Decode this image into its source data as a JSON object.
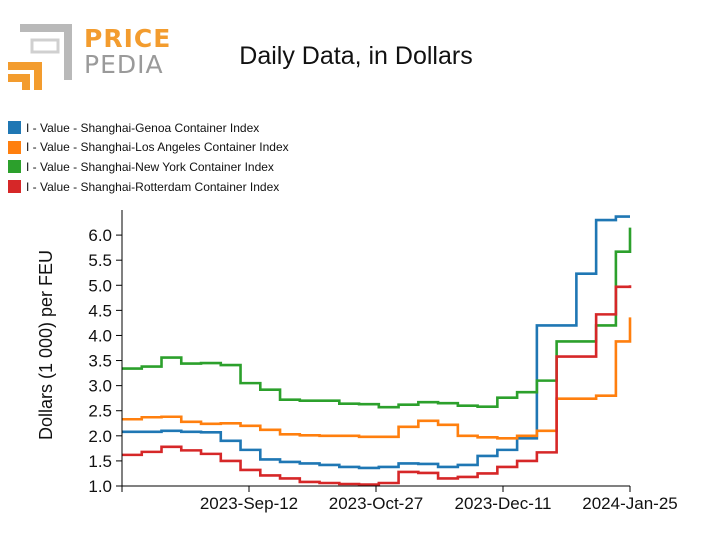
{
  "logo": {
    "line1": "PRICE",
    "line2": "PEDIA",
    "colors": {
      "orange": "#f39c2e",
      "gray": "#9a9a9a"
    }
  },
  "header": {
    "title": "Daily Data, in Dollars"
  },
  "chart_data": {
    "type": "line",
    "title": "Daily Data, in Dollars",
    "xlabel": "",
    "ylabel": "Dollars (1 000) per FEU",
    "ylim": [
      1.0,
      6.5
    ],
    "yticks": [
      1.0,
      1.5,
      2.0,
      2.5,
      3.0,
      3.5,
      4.0,
      4.5,
      5.0,
      5.5,
      6.0
    ],
    "ytick_labels": [
      "1.0",
      "1.5",
      "2.0",
      "2.5",
      "3.0",
      "3.5",
      "4.0",
      "4.5",
      "5.0",
      "5.5",
      "6.0"
    ],
    "xlim": [
      -45,
      135
    ],
    "xticks": [
      0,
      45,
      90,
      135
    ],
    "xtick_labels": [
      "2023-Sep-12",
      "2023-Oct-27",
      "2023-Dec-11",
      "2024-Jan-25"
    ],
    "x_unit": "days since 2023-09-12 (weekly observations, step line)",
    "x": [
      -45,
      -38,
      -31,
      -24,
      -17,
      -10,
      -3,
      4,
      11,
      18,
      25,
      32,
      39,
      46,
      53,
      60,
      67,
      74,
      81,
      88,
      95,
      102,
      109,
      116,
      123,
      130,
      135
    ],
    "series": [
      {
        "name": "I - Value - Shanghai-Genoa Container Index",
        "color": "#1f77b4",
        "values": [
          2.08,
          2.08,
          2.1,
          2.08,
          2.07,
          1.9,
          1.72,
          1.53,
          1.48,
          1.45,
          1.42,
          1.38,
          1.36,
          1.38,
          1.45,
          1.44,
          1.38,
          1.42,
          1.6,
          1.72,
          1.95,
          4.2,
          4.2,
          5.23,
          6.3,
          6.37,
          6.37
        ]
      },
      {
        "name": "I - Value - Shanghai-Los Angeles Container Index",
        "color": "#ff7f0e",
        "values": [
          2.33,
          2.37,
          2.38,
          2.28,
          2.24,
          2.25,
          2.2,
          2.12,
          2.03,
          2.01,
          2.0,
          2.0,
          1.98,
          1.98,
          2.18,
          2.3,
          2.22,
          2.0,
          1.97,
          1.95,
          2.0,
          2.1,
          2.74,
          2.74,
          2.8,
          3.88,
          4.36
        ]
      },
      {
        "name": "I - Value - Shanghai-New York Container Index",
        "color": "#2ca02c",
        "values": [
          3.34,
          3.38,
          3.56,
          3.44,
          3.45,
          3.41,
          3.05,
          2.92,
          2.72,
          2.7,
          2.7,
          2.64,
          2.63,
          2.57,
          2.62,
          2.67,
          2.65,
          2.6,
          2.58,
          2.76,
          2.87,
          3.1,
          3.88,
          3.88,
          4.2,
          5.67,
          6.15
        ]
      },
      {
        "name": "I - Value - Shanghai-Rotterdam Container Index",
        "color": "#d62728",
        "values": [
          1.62,
          1.68,
          1.78,
          1.71,
          1.64,
          1.5,
          1.32,
          1.21,
          1.15,
          1.08,
          1.06,
          1.04,
          1.03,
          1.06,
          1.28,
          1.26,
          1.15,
          1.18,
          1.25,
          1.38,
          1.5,
          1.67,
          3.58,
          3.58,
          4.42,
          4.97,
          5.0
        ]
      }
    ]
  }
}
